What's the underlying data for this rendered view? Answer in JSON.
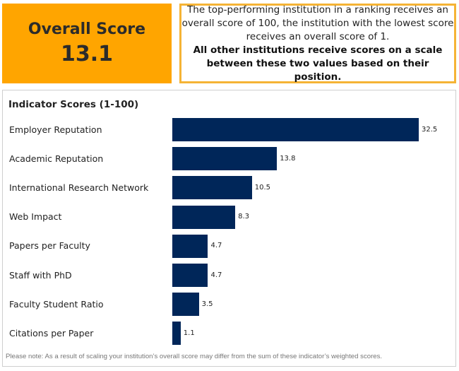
{
  "overall": {
    "title": "Overall Score",
    "value": "13.1"
  },
  "info": {
    "lines": [
      "The top-performing institution in a ranking receives an",
      "overall score of 100, the institution with the lowest score",
      "receives an overall score of 1."
    ],
    "bold_lines": [
      "All other institutions receive scores on a scale",
      "between these two values based on their position."
    ]
  },
  "colors": {
    "overall_bg": "#FFA500",
    "info_border": "#F5B335",
    "bar": "#002659"
  },
  "chart_data": {
    "type": "bar",
    "orientation": "horizontal",
    "title": "Indicator Scores (1-100)",
    "xlabel": "",
    "ylabel": "",
    "xlim": [
      0,
      32.5
    ],
    "grid": false,
    "categories": [
      "Employer Reputation",
      "Academic Reputation",
      "International Research Network",
      "Web Impact",
      "Papers per Faculty",
      "Staff with PhD",
      "Faculty Student Ratio",
      "Citations per Paper"
    ],
    "values": [
      32.5,
      13.8,
      10.5,
      8.3,
      4.7,
      4.7,
      3.5,
      1.1
    ],
    "value_labels": [
      "32.5",
      "13.8",
      "10.5",
      "8.3",
      "4.7",
      "4.7",
      "3.5",
      "1.1"
    ]
  },
  "note": "Please note: As a result of scaling your institution’s overall score may differ from the sum of these indicator’s weighted scores."
}
